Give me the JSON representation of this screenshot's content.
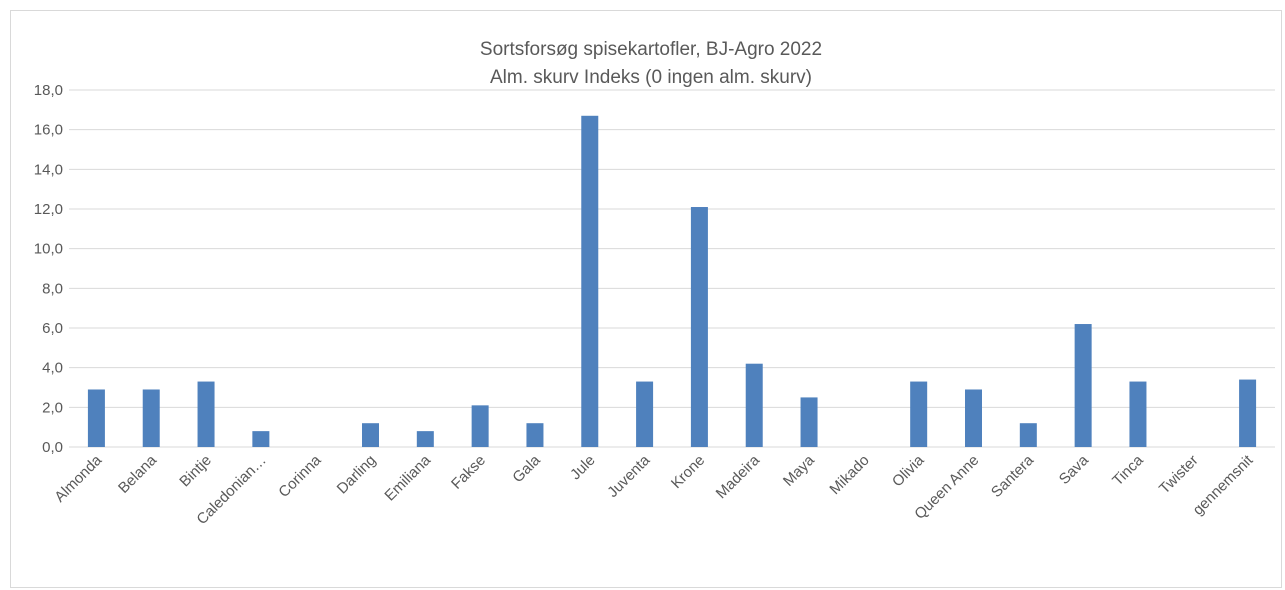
{
  "chart_data": {
    "type": "bar",
    "title": "Sortsforsøg spisekartofler, BJ-Agro 2022",
    "subtitle": "Alm. skurv Indeks (0 ingen alm. skurv)",
    "xlabel": "",
    "ylabel": "",
    "ylim": [
      0,
      18
    ],
    "yticks": [
      "0,0",
      "2,0",
      "4,0",
      "6,0",
      "8,0",
      "10,0",
      "12,0",
      "14,0",
      "16,0",
      "18,0"
    ],
    "grid": true,
    "legend": "none",
    "bar_color": "#4f81bd",
    "categories": [
      "Almonda",
      "Belana",
      "Bintje",
      "Caledonian…",
      "Corinna",
      "Darling",
      "Emiliana",
      "Fakse",
      "Gala",
      "Jule",
      "Juventa",
      "Krone",
      "Madeira",
      "Maya",
      "Mikado",
      "Olivia",
      "Queen Anne",
      "Santera",
      "Sava",
      "Tinca",
      "Twister",
      "gennemsnit"
    ],
    "values": [
      2.9,
      2.9,
      3.3,
      0.8,
      0.0,
      1.2,
      0.8,
      2.1,
      1.2,
      16.7,
      3.3,
      12.1,
      4.2,
      2.5,
      0.0,
      3.3,
      2.9,
      1.2,
      6.2,
      3.3,
      0.0,
      3.4
    ]
  }
}
